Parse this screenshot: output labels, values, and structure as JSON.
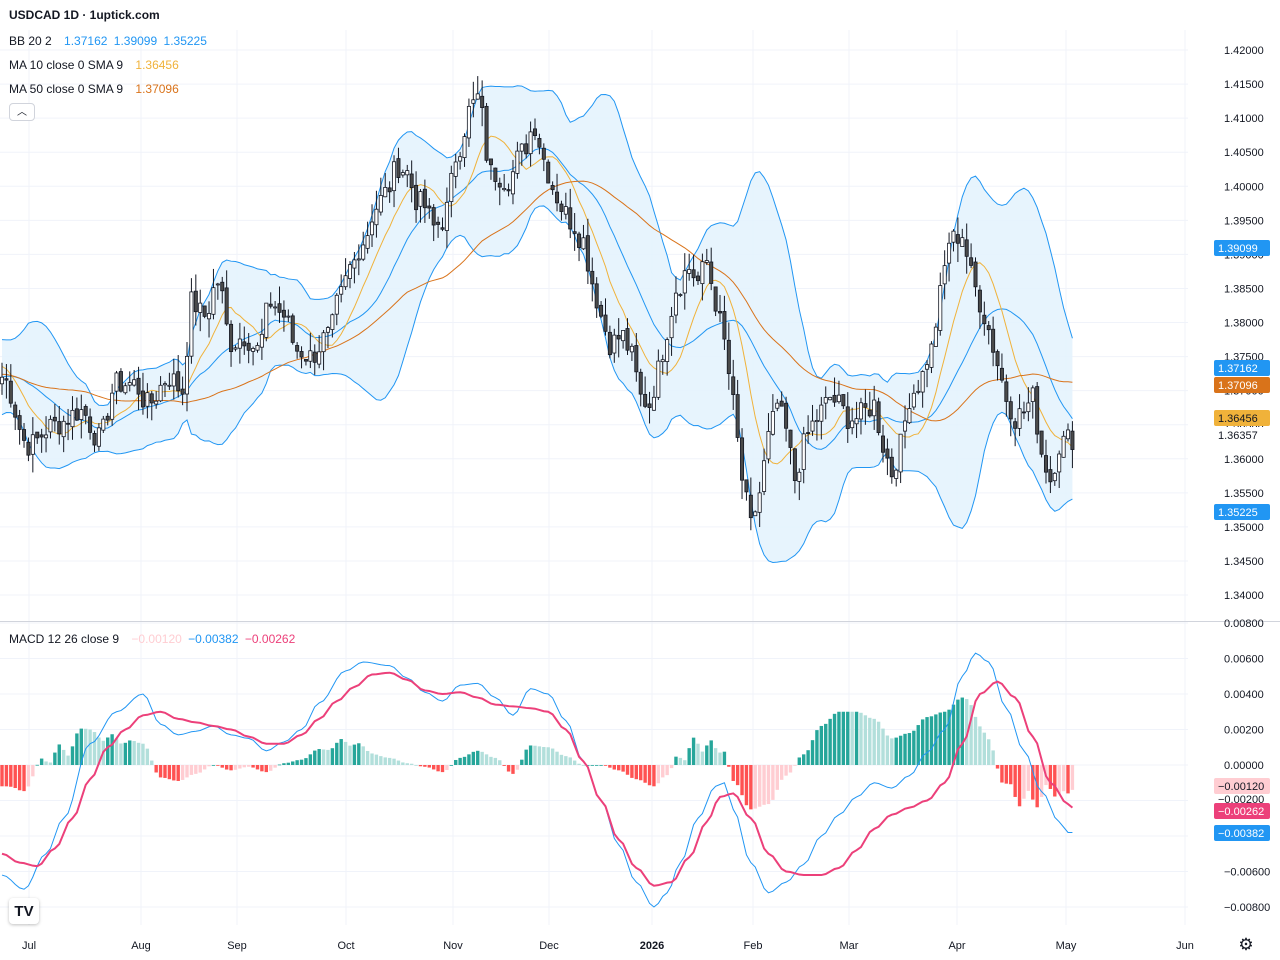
{
  "chart": {
    "title": "USDCAD 1D · 1uptick.com",
    "legend": {
      "bb": {
        "label": "BB 20 2",
        "basis": "1.37162",
        "upper": "1.39099",
        "lower": "1.35225"
      },
      "ma10": {
        "label": "MA 10 close 0 SMA 9",
        "value": "1.36456"
      },
      "ma50": {
        "label": "MA 50 close 0 SMA 9",
        "value": "1.37096"
      },
      "macd": {
        "label": "MACD 12 26 close 9",
        "hist": "−0.00120",
        "macd": "−0.00382",
        "signal": "−0.00262"
      }
    },
    "price_scale_labels": {
      "upper": "1.39099",
      "basis": "1.37162",
      "ma50": "1.37096",
      "ma10": "1.36456",
      "last": "1.36357",
      "lower": "1.35225"
    },
    "macd_scale_labels": {
      "hist": "−0.00120",
      "signal": "−0.00262",
      "macd": "−0.00382",
      "partial": "−0.00200"
    }
  },
  "colors": {
    "bb_line": "#2196F3",
    "bb_fill": "#E3F2FD",
    "ma10": "#F0B23A",
    "ma50": "#D9731A",
    "bull_body": "#ffffff",
    "bear_body": "#4a4a4a",
    "wick": "#131722",
    "hist_up_strong": "#26a69a",
    "hist_up_weak": "#b2dfdb",
    "hist_down_strong": "#ff5252",
    "hist_down_weak": "#ffcdd2",
    "macd_line": "#2196F3",
    "signal_line": "#ec407a",
    "grid": "#f0f3fa"
  },
  "chart_data": {
    "type": "candlestick",
    "symbol": "USDCAD",
    "interval": "1D",
    "x_ticks": [
      "Jul",
      "Aug",
      "Sep",
      "Oct",
      "Nov",
      "Dec",
      "2026",
      "Feb",
      "Mar",
      "Apr",
      "May",
      "Jun"
    ],
    "price_axis": {
      "ticks": [
        "1.42000",
        "1.41500",
        "1.41000",
        "1.40500",
        "1.40000",
        "1.39500",
        "1.39000",
        "1.38500",
        "1.38000",
        "1.37500",
        "1.37000",
        "1.36500",
        "1.36000",
        "1.35500",
        "1.35000",
        "1.34500",
        "1.34000"
      ],
      "range": [
        1.3385,
        1.4225
      ]
    },
    "macd_axis": {
      "ticks": [
        "0.00800",
        "0.00600",
        "0.00400",
        "0.00200",
        "0.00000",
        "−0.00200",
        "−0.00400",
        "−0.00600",
        "−0.00800"
      ],
      "range": [
        -0.0081,
        0.0081
      ]
    },
    "anchors": {
      "close": [
        [
          0,
          1.372
        ],
        [
          6,
          1.362
        ],
        [
          12,
          1.365
        ],
        [
          18,
          1.367
        ],
        [
          22,
          1.363
        ],
        [
          26,
          1.371
        ],
        [
          30,
          1.371
        ],
        [
          33,
          1.368
        ],
        [
          38,
          1.372
        ],
        [
          41,
          1.37
        ],
        [
          43,
          1.383
        ],
        [
          46,
          1.381
        ],
        [
          49,
          1.386
        ],
        [
          52,
          1.377
        ],
        [
          55,
          1.378
        ],
        [
          58,
          1.376
        ],
        [
          61,
          1.383
        ],
        [
          64,
          1.381
        ],
        [
          67,
          1.376
        ],
        [
          70,
          1.375
        ],
        [
          74,
          1.378
        ],
        [
          77,
          1.384
        ],
        [
          79,
          1.388
        ],
        [
          82,
          1.392
        ],
        [
          85,
          1.397
        ],
        [
          87,
          1.399
        ],
        [
          90,
          1.403
        ],
        [
          92,
          1.402
        ],
        [
          94,
          1.398
        ],
        [
          96,
          1.397
        ],
        [
          98,
          1.394
        ],
        [
          100,
          1.395
        ],
        [
          104,
          1.406
        ],
        [
          106,
          1.411
        ],
        [
          108,
          1.413
        ],
        [
          111,
          1.402
        ],
        [
          115,
          1.401
        ],
        [
          118,
          1.405
        ],
        [
          121,
          1.409
        ],
        [
          123,
          1.404
        ],
        [
          125,
          1.4
        ],
        [
          127,
          1.397
        ],
        [
          129,
          1.395
        ],
        [
          132,
          1.392
        ],
        [
          134,
          1.386
        ],
        [
          136,
          1.381
        ],
        [
          138,
          1.377
        ],
        [
          141,
          1.378
        ],
        [
          143,
          1.375
        ],
        [
          145,
          1.369
        ],
        [
          147,
          1.368
        ],
        [
          149,
          1.373
        ],
        [
          151,
          1.379
        ],
        [
          153,
          1.385
        ],
        [
          156,
          1.388
        ],
        [
          158,
          1.386
        ],
        [
          160,
          1.389
        ],
        [
          162,
          1.383
        ],
        [
          164,
          1.377
        ],
        [
          166,
          1.368
        ],
        [
          168,
          1.357
        ],
        [
          170,
          1.35
        ],
        [
          172,
          1.355
        ],
        [
          174,
          1.363
        ],
        [
          176,
          1.368
        ],
        [
          178,
          1.364
        ],
        [
          180,
          1.357
        ],
        [
          182,
          1.362
        ],
        [
          184,
          1.365
        ],
        [
          186,
          1.367
        ],
        [
          188,
          1.369
        ],
        [
          190,
          1.368
        ],
        [
          192,
          1.366
        ],
        [
          194,
          1.366
        ],
        [
          196,
          1.367
        ],
        [
          198,
          1.368
        ],
        [
          200,
          1.362
        ],
        [
          202,
          1.358
        ],
        [
          204,
          1.362
        ],
        [
          206,
          1.369
        ],
        [
          208,
          1.371
        ],
        [
          211,
          1.376
        ],
        [
          213,
          1.384
        ],
        [
          215,
          1.392
        ],
        [
          218,
          1.393
        ],
        [
          220,
          1.387
        ],
        [
          222,
          1.383
        ],
        [
          224,
          1.379
        ],
        [
          226,
          1.374
        ],
        [
          228,
          1.369
        ],
        [
          230,
          1.366
        ],
        [
          232,
          1.367
        ],
        [
          234,
          1.369
        ],
        [
          236,
          1.361
        ],
        [
          238,
          1.357
        ],
        [
          240,
          1.362
        ],
        [
          242,
          1.363
        ]
      ],
      "macd": [
        [
          0,
          -0.0062
        ],
        [
          5,
          -0.007
        ],
        [
          10,
          -0.005
        ],
        [
          14,
          -0.003
        ],
        [
          20,
          0.0012
        ],
        [
          26,
          0.003
        ],
        [
          32,
          0.004
        ],
        [
          36,
          0.0023
        ],
        [
          40,
          0.0017
        ],
        [
          44,
          0.0019
        ],
        [
          48,
          0.0022
        ],
        [
          52,
          0.0017
        ],
        [
          56,
          0.0015
        ],
        [
          60,
          0.0008
        ],
        [
          64,
          0.0013
        ],
        [
          68,
          0.002
        ],
        [
          72,
          0.0035
        ],
        [
          78,
          0.0053
        ],
        [
          82,
          0.0058
        ],
        [
          88,
          0.0056
        ],
        [
          92,
          0.0049
        ],
        [
          96,
          0.0041
        ],
        [
          100,
          0.0036
        ],
        [
          104,
          0.0045
        ],
        [
          108,
          0.0046
        ],
        [
          112,
          0.0038
        ],
        [
          116,
          0.0028
        ],
        [
          120,
          0.0043
        ],
        [
          124,
          0.004
        ],
        [
          128,
          0.0025
        ],
        [
          132,
          0.0002
        ],
        [
          136,
          -0.002
        ],
        [
          140,
          -0.0045
        ],
        [
          144,
          -0.0066
        ],
        [
          148,
          -0.008
        ],
        [
          151,
          -0.0072
        ],
        [
          154,
          -0.0055
        ],
        [
          158,
          -0.003
        ],
        [
          162,
          -0.0012
        ],
        [
          164,
          -0.001
        ],
        [
          166,
          -0.0025
        ],
        [
          170,
          -0.0055
        ],
        [
          174,
          -0.0072
        ],
        [
          178,
          -0.0066
        ],
        [
          182,
          -0.0056
        ],
        [
          186,
          -0.004
        ],
        [
          190,
          -0.0028
        ],
        [
          194,
          -0.0018
        ],
        [
          198,
          -0.001
        ],
        [
          202,
          -0.0013
        ],
        [
          206,
          -0.0006
        ],
        [
          210,
          0.0007
        ],
        [
          214,
          0.002
        ],
        [
          218,
          0.005
        ],
        [
          221,
          0.0063
        ],
        [
          224,
          0.0058
        ],
        [
          228,
          0.0032
        ],
        [
          232,
          0.0008
        ],
        [
          236,
          -0.0015
        ],
        [
          240,
          -0.0032
        ],
        [
          242,
          -0.0038
        ],
        [
          244,
          -0.0038
        ]
      ],
      "signal": [
        [
          0,
          -0.005
        ],
        [
          4,
          -0.0055
        ],
        [
          8,
          -0.0057
        ],
        [
          12,
          -0.0047
        ],
        [
          16,
          -0.003
        ],
        [
          20,
          -0.0008
        ],
        [
          24,
          0.001
        ],
        [
          28,
          0.002
        ],
        [
          32,
          0.0028
        ],
        [
          36,
          0.003
        ],
        [
          40,
          0.0026
        ],
        [
          44,
          0.0024
        ],
        [
          48,
          0.0022
        ],
        [
          52,
          0.002
        ],
        [
          56,
          0.0016
        ],
        [
          60,
          0.0012
        ],
        [
          64,
          0.0012
        ],
        [
          68,
          0.0017
        ],
        [
          72,
          0.0026
        ],
        [
          76,
          0.0036
        ],
        [
          80,
          0.0044
        ],
        [
          84,
          0.0051
        ],
        [
          88,
          0.0052
        ],
        [
          92,
          0.0048
        ],
        [
          96,
          0.0042
        ],
        [
          100,
          0.004
        ],
        [
          104,
          0.0041
        ],
        [
          108,
          0.0038
        ],
        [
          112,
          0.0034
        ],
        [
          116,
          0.0033
        ],
        [
          120,
          0.0032
        ],
        [
          124,
          0.003
        ],
        [
          128,
          0.002
        ],
        [
          132,
          0.0002
        ],
        [
          136,
          -0.002
        ],
        [
          140,
          -0.0042
        ],
        [
          144,
          -0.0058
        ],
        [
          148,
          -0.0068
        ],
        [
          152,
          -0.0066
        ],
        [
          156,
          -0.0052
        ],
        [
          160,
          -0.0032
        ],
        [
          163,
          -0.0018
        ],
        [
          166,
          -0.0016
        ],
        [
          170,
          -0.003
        ],
        [
          174,
          -0.005
        ],
        [
          178,
          -0.006
        ],
        [
          182,
          -0.0062
        ],
        [
          186,
          -0.0062
        ],
        [
          190,
          -0.0058
        ],
        [
          194,
          -0.0048
        ],
        [
          198,
          -0.0036
        ],
        [
          202,
          -0.0028
        ],
        [
          206,
          -0.0024
        ],
        [
          210,
          -0.002
        ],
        [
          214,
          -0.001
        ],
        [
          218,
          0.0012
        ],
        [
          222,
          0.004
        ],
        [
          226,
          0.0047
        ],
        [
          230,
          0.0038
        ],
        [
          234,
          0.0016
        ],
        [
          238,
          -0.001
        ],
        [
          242,
          -0.0022
        ],
        [
          244,
          -0.0026
        ]
      ]
    }
  }
}
